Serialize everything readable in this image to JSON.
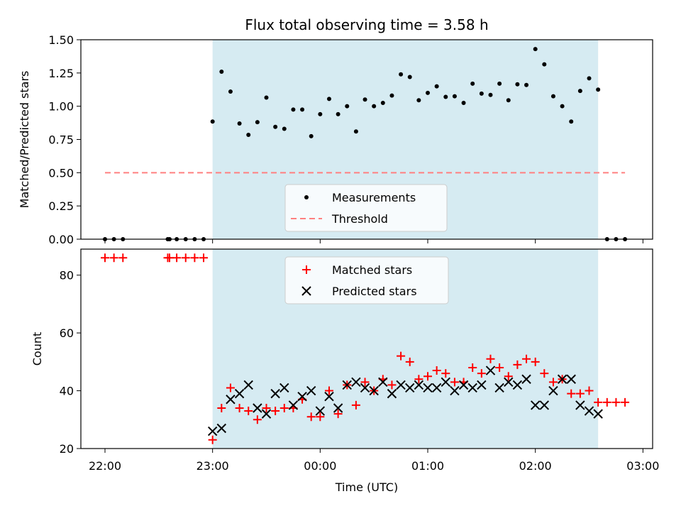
{
  "chart_data": {
    "type": "scatter",
    "title": "Flux total observing time = 3.58 h",
    "xlabel": "Time (UTC)",
    "x_ticks": [
      "22:00",
      "23:00",
      "00:00",
      "01:00",
      "02:00",
      "03:00"
    ],
    "observing_window": {
      "start": "23:00",
      "end": "02:35"
    },
    "panels": [
      {
        "ylabel": "Matched/Predicted stars",
        "ylim": [
          0,
          1.5
        ],
        "y_ticks": [
          "0.00",
          "0.25",
          "0.50",
          "0.75",
          "1.00",
          "1.25",
          "1.50"
        ],
        "legend_position": "lower-center",
        "series": [
          {
            "name": "Measurements",
            "marker": "dot",
            "color": "#000000",
            "points": [
              [
                "22:00",
                0
              ],
              [
                "22:05",
                0
              ],
              [
                "22:10",
                0
              ],
              [
                "22:35",
                0
              ],
              [
                "22:36",
                0
              ],
              [
                "22:40",
                0
              ],
              [
                "22:45",
                0
              ],
              [
                "22:50",
                0
              ],
              [
                "22:55",
                0
              ],
              [
                "23:00",
                0.885
              ],
              [
                "23:05",
                1.26
              ],
              [
                "23:10",
                1.11
              ],
              [
                "23:15",
                0.87
              ],
              [
                "23:20",
                0.785
              ],
              [
                "23:25",
                0.88
              ],
              [
                "23:30",
                1.065
              ],
              [
                "23:35",
                0.845
              ],
              [
                "23:40",
                0.83
              ],
              [
                "23:45",
                0.975
              ],
              [
                "23:50",
                0.975
              ],
              [
                "23:55",
                0.775
              ],
              [
                "00:00",
                0.94
              ],
              [
                "00:05",
                1.055
              ],
              [
                "00:10",
                0.94
              ],
              [
                "00:15",
                1.0
              ],
              [
                "00:20",
                0.81
              ],
              [
                "00:25",
                1.05
              ],
              [
                "00:30",
                1.0
              ],
              [
                "00:35",
                1.025
              ],
              [
                "00:40",
                1.08
              ],
              [
                "00:45",
                1.24
              ],
              [
                "00:50",
                1.22
              ],
              [
                "00:55",
                1.045
              ],
              [
                "01:00",
                1.1
              ],
              [
                "01:05",
                1.15
              ],
              [
                "01:10",
                1.07
              ],
              [
                "01:15",
                1.075
              ],
              [
                "01:20",
                1.025
              ],
              [
                "01:25",
                1.17
              ],
              [
                "01:30",
                1.095
              ],
              [
                "01:35",
                1.085
              ],
              [
                "01:40",
                1.17
              ],
              [
                "01:45",
                1.045
              ],
              [
                "01:50",
                1.165
              ],
              [
                "01:55",
                1.16
              ],
              [
                "02:00",
                1.43
              ],
              [
                "02:05",
                1.315
              ],
              [
                "02:10",
                1.075
              ],
              [
                "02:15",
                1.0
              ],
              [
                "02:20",
                0.885
              ],
              [
                "02:25",
                1.115
              ],
              [
                "02:30",
                1.21
              ],
              [
                "02:35",
                1.125
              ],
              [
                "02:40",
                0
              ],
              [
                "02:45",
                0
              ],
              [
                "02:50",
                0
              ]
            ]
          },
          {
            "name": "Threshold",
            "marker": "dashed-line",
            "color": "#ff8080",
            "points": [
              [
                "22:00",
                0.5
              ],
              [
                "02:50",
                0.5
              ]
            ]
          }
        ]
      },
      {
        "ylabel": "Count",
        "ylim": [
          20,
          89
        ],
        "y_ticks": [
          "20",
          "40",
          "60",
          "80"
        ],
        "legend_position": "upper-center",
        "series": [
          {
            "name": "Matched stars",
            "marker": "plus",
            "color": "#ff0000",
            "points": [
              [
                "22:00",
                86
              ],
              [
                "22:05",
                86
              ],
              [
                "22:10",
                86
              ],
              [
                "22:35",
                86
              ],
              [
                "22:36",
                86
              ],
              [
                "22:40",
                86
              ],
              [
                "22:45",
                86
              ],
              [
                "22:50",
                86
              ],
              [
                "22:55",
                86
              ],
              [
                "23:00",
                23
              ],
              [
                "23:05",
                34
              ],
              [
                "23:10",
                41
              ],
              [
                "23:15",
                34
              ],
              [
                "23:20",
                33
              ],
              [
                "23:25",
                30
              ],
              [
                "23:30",
                34
              ],
              [
                "23:35",
                33
              ],
              [
                "23:40",
                34
              ],
              [
                "23:45",
                34
              ],
              [
                "23:50",
                37
              ],
              [
                "23:55",
                31
              ],
              [
                "00:00",
                31
              ],
              [
                "00:05",
                40
              ],
              [
                "00:10",
                32
              ],
              [
                "00:15",
                42
              ],
              [
                "00:20",
                35
              ],
              [
                "00:25",
                43
              ],
              [
                "00:30",
                40
              ],
              [
                "00:35",
                44
              ],
              [
                "00:40",
                42
              ],
              [
                "00:45",
                52
              ],
              [
                "00:50",
                50
              ],
              [
                "00:55",
                44
              ],
              [
                "01:00",
                45
              ],
              [
                "01:05",
                47
              ],
              [
                "01:10",
                46
              ],
              [
                "01:15",
                43
              ],
              [
                "01:20",
                43
              ],
              [
                "01:25",
                48
              ],
              [
                "01:30",
                46
              ],
              [
                "01:35",
                51
              ],
              [
                "01:40",
                48
              ],
              [
                "01:45",
                45
              ],
              [
                "01:50",
                49
              ],
              [
                "01:55",
                51
              ],
              [
                "02:00",
                50
              ],
              [
                "02:05",
                46
              ],
              [
                "02:10",
                43
              ],
              [
                "02:15",
                44
              ],
              [
                "02:20",
                39
              ],
              [
                "02:25",
                39
              ],
              [
                "02:30",
                40
              ],
              [
                "02:35",
                36
              ],
              [
                "02:40",
                36
              ],
              [
                "02:45",
                36
              ],
              [
                "02:50",
                36
              ]
            ]
          },
          {
            "name": "Predicted stars",
            "marker": "x",
            "color": "#000000",
            "points": [
              [
                "23:00",
                26
              ],
              [
                "23:05",
                27
              ],
              [
                "23:10",
                37
              ],
              [
                "23:15",
                39
              ],
              [
                "23:20",
                42
              ],
              [
                "23:25",
                34
              ],
              [
                "23:30",
                32
              ],
              [
                "23:35",
                39
              ],
              [
                "23:40",
                41
              ],
              [
                "23:45",
                35
              ],
              [
                "23:50",
                38
              ],
              [
                "23:55",
                40
              ],
              [
                "00:00",
                33
              ],
              [
                "00:05",
                38
              ],
              [
                "00:10",
                34
              ],
              [
                "00:15",
                42
              ],
              [
                "00:20",
                43
              ],
              [
                "00:25",
                41
              ],
              [
                "00:30",
                40
              ],
              [
                "00:35",
                43
              ],
              [
                "00:40",
                39
              ],
              [
                "00:45",
                42
              ],
              [
                "00:50",
                41
              ],
              [
                "00:55",
                42
              ],
              [
                "01:00",
                41
              ],
              [
                "01:05",
                41
              ],
              [
                "01:10",
                43
              ],
              [
                "01:15",
                40
              ],
              [
                "01:20",
                42
              ],
              [
                "01:25",
                41
              ],
              [
                "01:30",
                42
              ],
              [
                "01:35",
                47
              ],
              [
                "01:40",
                41
              ],
              [
                "01:45",
                43
              ],
              [
                "01:50",
                42
              ],
              [
                "01:55",
                44
              ],
              [
                "02:00",
                35
              ],
              [
                "02:05",
                35
              ],
              [
                "02:10",
                40
              ],
              [
                "02:15",
                44
              ],
              [
                "02:20",
                44
              ],
              [
                "02:25",
                35
              ],
              [
                "02:30",
                33
              ],
              [
                "02:35",
                32
              ]
            ]
          }
        ]
      }
    ]
  }
}
